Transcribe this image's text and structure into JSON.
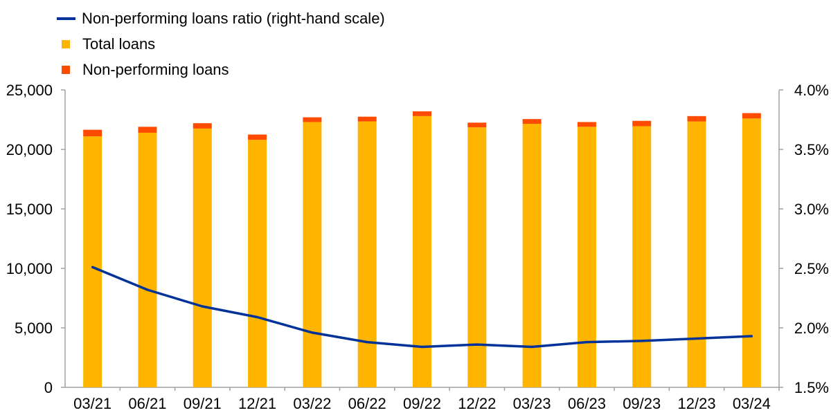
{
  "colors": {
    "total_loans": "#FFB400",
    "npl": "#FF4B00",
    "ratio_line": "#003299",
    "axis": "#A0A0A0"
  },
  "legend": [
    {
      "label": "Non-performing loans ratio (right-hand scale)",
      "swatch": "line",
      "color": "#003299"
    },
    {
      "label": "Total loans",
      "swatch": "box",
      "color": "#FFB400"
    },
    {
      "label": "Non-performing loans",
      "swatch": "box",
      "color": "#FF4B00"
    }
  ],
  "chart_data": {
    "type": "bar",
    "stacked": true,
    "categories": [
      "03/21",
      "06/21",
      "09/21",
      "12/21",
      "03/22",
      "06/22",
      "09/22",
      "12/22",
      "03/23",
      "06/23",
      "09/23",
      "12/23",
      "03/24"
    ],
    "series": [
      {
        "name": "Total loans",
        "type": "bar",
        "axis": "left",
        "values": [
          21100,
          21400,
          21750,
          20800,
          22300,
          22350,
          22800,
          21850,
          22150,
          21900,
          21950,
          22350,
          22600
        ]
      },
      {
        "name": "Non-performing loans",
        "type": "bar",
        "axis": "left",
        "values": [
          550,
          500,
          450,
          450,
          400,
          400,
          400,
          400,
          400,
          400,
          450,
          450,
          450
        ]
      },
      {
        "name": "Non-performing loans ratio (right-hand scale)",
        "type": "line",
        "axis": "right",
        "values": [
          2.51,
          2.32,
          2.18,
          2.09,
          1.96,
          1.88,
          1.84,
          1.86,
          1.84,
          1.88,
          1.89,
          1.91,
          1.93
        ]
      }
    ],
    "y_left": {
      "min": 0,
      "max": 25000,
      "ticks": [
        "0",
        "5,000",
        "10,000",
        "15,000",
        "20,000",
        "25,000"
      ],
      "tick_values": [
        0,
        5000,
        10000,
        15000,
        20000,
        25000
      ]
    },
    "y_right": {
      "min": 1.5,
      "max": 4.0,
      "ticks": [
        "1.5%",
        "2.0%",
        "2.5%",
        "3.0%",
        "3.5%",
        "4.0%"
      ],
      "tick_values": [
        1.5,
        2.0,
        2.5,
        3.0,
        3.5,
        4.0
      ]
    },
    "grid": false,
    "legend_position": "top-left"
  }
}
